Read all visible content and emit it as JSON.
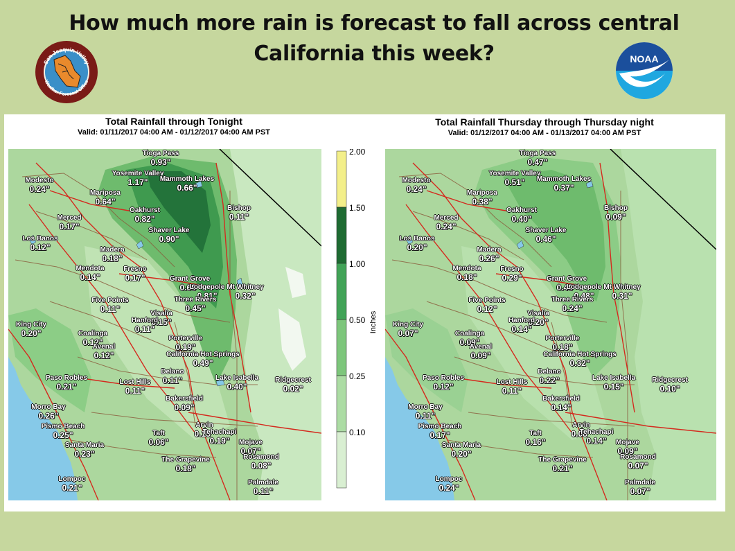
{
  "headline": "How much more rain is forecast to fall across central California this week?",
  "logos": {
    "wfo_top": "San Joaquin Valley",
    "wfo_bottom": "Weather Forecast Office",
    "noaa": "NOAA"
  },
  "maps": [
    {
      "title": "Total Rainfall through Tonight",
      "valid": "Valid: 01/11/2017 04:00 AM - 01/12/2017 04:00 AM PST",
      "stations": [
        {
          "name": "Tioga Pass",
          "value": "0.93\""
        },
        {
          "name": "Yosemite Valley",
          "value": "1.17\""
        },
        {
          "name": "Mammoth Lakes",
          "value": "0.66\""
        },
        {
          "name": "Modesto",
          "value": "0.24\""
        },
        {
          "name": "Mariposa",
          "value": "0.64\""
        },
        {
          "name": "Bishop",
          "value": "0.11\""
        },
        {
          "name": "Oakhurst",
          "value": "0.82\""
        },
        {
          "name": "Merced",
          "value": "0.17\""
        },
        {
          "name": "Shaver Lake",
          "value": "0.90\""
        },
        {
          "name": "Los Banos",
          "value": "0.12\""
        },
        {
          "name": "Madera",
          "value": "0.18\""
        },
        {
          "name": "Mendota",
          "value": "0.14\""
        },
        {
          "name": "Fresno",
          "value": "0.17\""
        },
        {
          "name": "Grant Grove",
          "value": "0.68\""
        },
        {
          "name": "Lodgepole",
          "value": "0.81\""
        },
        {
          "name": "Mt Whitney",
          "value": "0.32\""
        },
        {
          "name": "Five Points",
          "value": "0.11\""
        },
        {
          "name": "Three Rivers",
          "value": "0.45\""
        },
        {
          "name": "Visalia",
          "value": "0.15\""
        },
        {
          "name": "Hanford",
          "value": "0.11\""
        },
        {
          "name": "King City",
          "value": "0.20\""
        },
        {
          "name": "Coalinga",
          "value": "0.12\""
        },
        {
          "name": "Porterville",
          "value": "0.19\""
        },
        {
          "name": "Avenal",
          "value": "0.12\""
        },
        {
          "name": "California Hot Springs",
          "value": "0.49\""
        },
        {
          "name": "Delano",
          "value": "0.11\""
        },
        {
          "name": "Paso Robles",
          "value": "0.21\""
        },
        {
          "name": "Lost Hills",
          "value": "0.11\""
        },
        {
          "name": "Lake Isabella",
          "value": "0.40\""
        },
        {
          "name": "Ridgecrest",
          "value": "0.02\""
        },
        {
          "name": "Bakersfield",
          "value": "0.09\""
        },
        {
          "name": "Morro Bay",
          "value": "0.26\""
        },
        {
          "name": "Pismo Beach",
          "value": "0.25\""
        },
        {
          "name": "Arvin",
          "value": "0.15\""
        },
        {
          "name": "Tehachapi",
          "value": "0.19\""
        },
        {
          "name": "Taft",
          "value": "0.06\""
        },
        {
          "name": "Mojave",
          "value": "0.07\""
        },
        {
          "name": "Santa Maria",
          "value": "0.23\""
        },
        {
          "name": "Rosamond",
          "value": "0.08\""
        },
        {
          "name": "The Grapevine",
          "value": "0.18\""
        },
        {
          "name": "Lompoc",
          "value": "0.21\""
        },
        {
          "name": "Palmdale",
          "value": "0.11\""
        }
      ]
    },
    {
      "title": "Total Rainfall Thursday through Thursday night",
      "valid": "Valid: 01/12/2017 04:00 AM - 01/13/2017 04:00 AM PST",
      "stations": [
        {
          "name": "Tioga Pass",
          "value": "0.47\""
        },
        {
          "name": "Yosemite Valley",
          "value": "0.51\""
        },
        {
          "name": "Mammoth Lakes",
          "value": "0.37\""
        },
        {
          "name": "Modesto",
          "value": "0.24\""
        },
        {
          "name": "Mariposa",
          "value": "0.38\""
        },
        {
          "name": "Bishop",
          "value": "0.09\""
        },
        {
          "name": "Oakhurst",
          "value": "0.40\""
        },
        {
          "name": "Merced",
          "value": "0.24\""
        },
        {
          "name": "Shaver Lake",
          "value": "0.46\""
        },
        {
          "name": "Los Banos",
          "value": "0.20\""
        },
        {
          "name": "Madera",
          "value": "0.26\""
        },
        {
          "name": "Mendota",
          "value": "0.18\""
        },
        {
          "name": "Fresno",
          "value": "0.29\""
        },
        {
          "name": "Grant Grove",
          "value": "0.48\""
        },
        {
          "name": "Lodgepole",
          "value": "0.48\""
        },
        {
          "name": "Mt Whitney",
          "value": "0.31\""
        },
        {
          "name": "Five Points",
          "value": "0.12\""
        },
        {
          "name": "Three Rivers",
          "value": "0.24\""
        },
        {
          "name": "Visalia",
          "value": "0.20\""
        },
        {
          "name": "Hanford",
          "value": "0.14\""
        },
        {
          "name": "King City",
          "value": "0.07\""
        },
        {
          "name": "Coalinga",
          "value": "0.09\""
        },
        {
          "name": "Porterville",
          "value": "0.18\""
        },
        {
          "name": "Avenal",
          "value": "0.09\""
        },
        {
          "name": "California Hot Springs",
          "value": "0.32\""
        },
        {
          "name": "Delano",
          "value": "0.22\""
        },
        {
          "name": "Paso Robles",
          "value": "0.12\""
        },
        {
          "name": "Lost Hills",
          "value": "0.11\""
        },
        {
          "name": "Lake Isabella",
          "value": "0.15\""
        },
        {
          "name": "Ridgecrest",
          "value": "0.10\""
        },
        {
          "name": "Bakersfield",
          "value": "0.14\""
        },
        {
          "name": "Morro Bay",
          "value": "0.11\""
        },
        {
          "name": "Pismo Beach",
          "value": "0.17\""
        },
        {
          "name": "Arvin",
          "value": "0.08\""
        },
        {
          "name": "Tehachapi",
          "value": "0.14\""
        },
        {
          "name": "Taft",
          "value": "0.16\""
        },
        {
          "name": "Mojave",
          "value": "0.09\""
        },
        {
          "name": "Santa Maria",
          "value": "0.20\""
        },
        {
          "name": "Rosamond",
          "value": "0.07\""
        },
        {
          "name": "The Grapevine",
          "value": "0.21\""
        },
        {
          "name": "Lompoc",
          "value": "0.24\""
        },
        {
          "name": "Palmdale",
          "value": "0.07\""
        }
      ]
    }
  ],
  "colorbar": {
    "label": "Inches",
    "ticks": [
      "2.00",
      "1.50",
      "1.00",
      "0.50",
      "0.25",
      "0.10"
    ],
    "colors": [
      "#f3ef8a",
      "#1e6b32",
      "#41a357",
      "#7dc67b",
      "#acdca4",
      "#d9efd2"
    ]
  }
}
